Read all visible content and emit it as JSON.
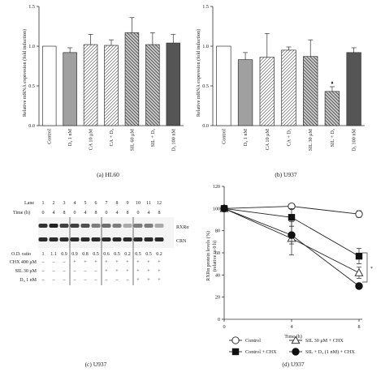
{
  "colors": {
    "dark": "#555555",
    "mid": "#a0a0a0",
    "line": "#444444",
    "white": "#ffffff"
  },
  "panel_a": {
    "caption": "(a)  HL60",
    "ylabel": "Relative mRNA expression (fold induction)",
    "yticks": [
      "0.0",
      "0.5",
      "1.0",
      "1.5"
    ]
  },
  "panel_b": {
    "caption": "(b)  U937",
    "ylabel": "Relative mRNA expression (fold induction)",
    "yticks": [
      "0.0",
      "0.5",
      "1.0",
      "1.5"
    ],
    "marker": "♦"
  },
  "panel_c": {
    "caption": "(c)  U937",
    "lane_label": "Lane",
    "lanes": [
      "1",
      "2",
      "3",
      "4",
      "5",
      "6",
      "7",
      "8",
      "9",
      "10",
      "11",
      "12"
    ],
    "time_label": "Time (h)",
    "times": [
      "0",
      "4",
      "8",
      "0",
      "4",
      "8",
      "0",
      "4",
      "8",
      "0",
      "4",
      "8"
    ],
    "band_labels": [
      "RXRα",
      "CRN"
    ],
    "od_label": "O.D. ratio",
    "od_values": [
      "1",
      "1.1",
      "0.9",
      "0.9",
      "0.8",
      "0.5",
      "0.6",
      "0.5",
      "0.2",
      "0.5",
      "0.5",
      "0.2"
    ],
    "treatments": [
      {
        "label": "CHX 400 μM",
        "marks": [
          "–",
          "–",
          "–",
          "+",
          "+",
          "+",
          "+",
          "+",
          "+",
          "+",
          "+",
          "+"
        ]
      },
      {
        "label": "SIL 30 μM",
        "marks": [
          "–",
          "–",
          "–",
          "–",
          "–",
          "–",
          "+",
          "+",
          "+",
          "+",
          "+",
          "+"
        ]
      },
      {
        "label": "D₃ 1 nM",
        "marks": [
          "–",
          "–",
          "–",
          "–",
          "–",
          "–",
          "–",
          "–",
          "–",
          "+",
          "+",
          "+"
        ]
      }
    ]
  },
  "panel_d": {
    "caption": "(d)  U937",
    "ylabel": "RXRα protein levels (%)",
    "ylabel2": "(relative to 0 h)",
    "xlabel": "Time (h)",
    "xticks": [
      "0",
      "4",
      "8"
    ],
    "yticks": [
      "0",
      "20",
      "40",
      "60",
      "80",
      "100",
      "120"
    ],
    "significance": "*",
    "legend": [
      "Control",
      "Control + CHX",
      "SIL 30 μM + CHX",
      "SIL + D₃ (1 nM) + CHX"
    ]
  },
  "chart_data": [
    {
      "type": "bar",
      "title": "(a) HL60",
      "ylabel": "Relative mRNA expression (fold induction)",
      "ylim": [
        0,
        1.5
      ],
      "categories": [
        "Control",
        "D₃ 1 nM",
        "CA 10 μM",
        "CA + D₃",
        "SIL 60 μM",
        "SIL + D₃",
        "D₃ 100 nM"
      ],
      "values": [
        1.0,
        0.92,
        1.02,
        1.01,
        1.17,
        1.02,
        1.04
      ],
      "errors": [
        0.0,
        0.06,
        0.13,
        0.07,
        0.19,
        0.15,
        0.11
      ],
      "fills": [
        "white",
        "gray",
        "hatch-up",
        "hatch-up",
        "hatch-down",
        "hatch-down",
        "dark"
      ]
    },
    {
      "type": "bar",
      "title": "(b) U937",
      "ylabel": "Relative mRNA expression (fold induction)",
      "ylim": [
        0,
        1.5
      ],
      "categories": [
        "Control",
        "D₃ 1 nM",
        "CA 10 μM",
        "CA + D₃",
        "SIL 30 μM",
        "SIL + D₃",
        "D₃ 100 nM"
      ],
      "values": [
        1.0,
        0.83,
        0.86,
        0.95,
        0.87,
        0.43,
        0.92
      ],
      "errors": [
        0.0,
        0.09,
        0.3,
        0.04,
        0.21,
        0.06,
        0.06
      ],
      "fills": [
        "white",
        "gray",
        "hatch-up",
        "hatch-up",
        "hatch-down",
        "hatch-down",
        "dark"
      ],
      "annotations": [
        {
          "category": "SIL + D₃",
          "text": "♦"
        }
      ]
    },
    {
      "type": "line",
      "title": "(d) U937",
      "xlabel": "Time (h)",
      "ylabel": "RXRα protein levels (%) (relative to 0 h)",
      "xlim": [
        0,
        8
      ],
      "ylim": [
        0,
        120
      ],
      "x": [
        0,
        4,
        8
      ],
      "series": [
        {
          "name": "Control",
          "values": [
            100,
            102,
            95
          ],
          "errors": [
            0,
            2,
            3
          ],
          "marker": "open-circle"
        },
        {
          "name": "Control + CHX",
          "values": [
            100,
            92,
            57
          ],
          "errors": [
            0,
            8,
            7
          ],
          "marker": "filled-square"
        },
        {
          "name": "SIL 30 μM + CHX",
          "values": [
            100,
            73,
            42
          ],
          "errors": [
            0,
            15,
            5
          ],
          "marker": "open-triangle"
        },
        {
          "name": "SIL + D₃ (1 nM) + CHX",
          "values": [
            100,
            76,
            30
          ],
          "errors": [
            0,
            8,
            2
          ],
          "marker": "filled-circle"
        }
      ]
    }
  ]
}
